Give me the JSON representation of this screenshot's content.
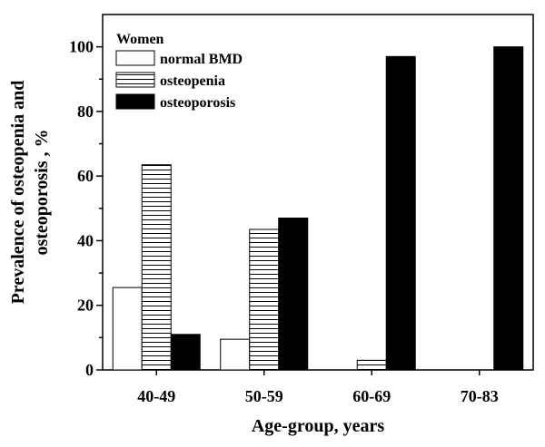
{
  "chart_data": {
    "type": "bar",
    "legend_title": "Women",
    "legend_position": "top-left",
    "categories": [
      "40-49",
      "50-59",
      "60-69",
      "70-83"
    ],
    "series": [
      {
        "name": "normal BMD",
        "fill": "white",
        "values": [
          25.5,
          9.5,
          0,
          0
        ]
      },
      {
        "name": "osteopenia",
        "fill": "hatch",
        "values": [
          63.5,
          43.5,
          3,
          0
        ]
      },
      {
        "name": "osteoporosis",
        "fill": "black",
        "values": [
          11,
          47,
          97,
          100
        ]
      }
    ],
    "xlabel": "Age-group, years",
    "ylabel_line1": "Prevalence of osteopenia and",
    "ylabel_line2": "osteoporosis , %",
    "ylim": [
      0,
      110
    ],
    "yticks": [
      0,
      20,
      40,
      60,
      80,
      100
    ],
    "grid": false
  }
}
